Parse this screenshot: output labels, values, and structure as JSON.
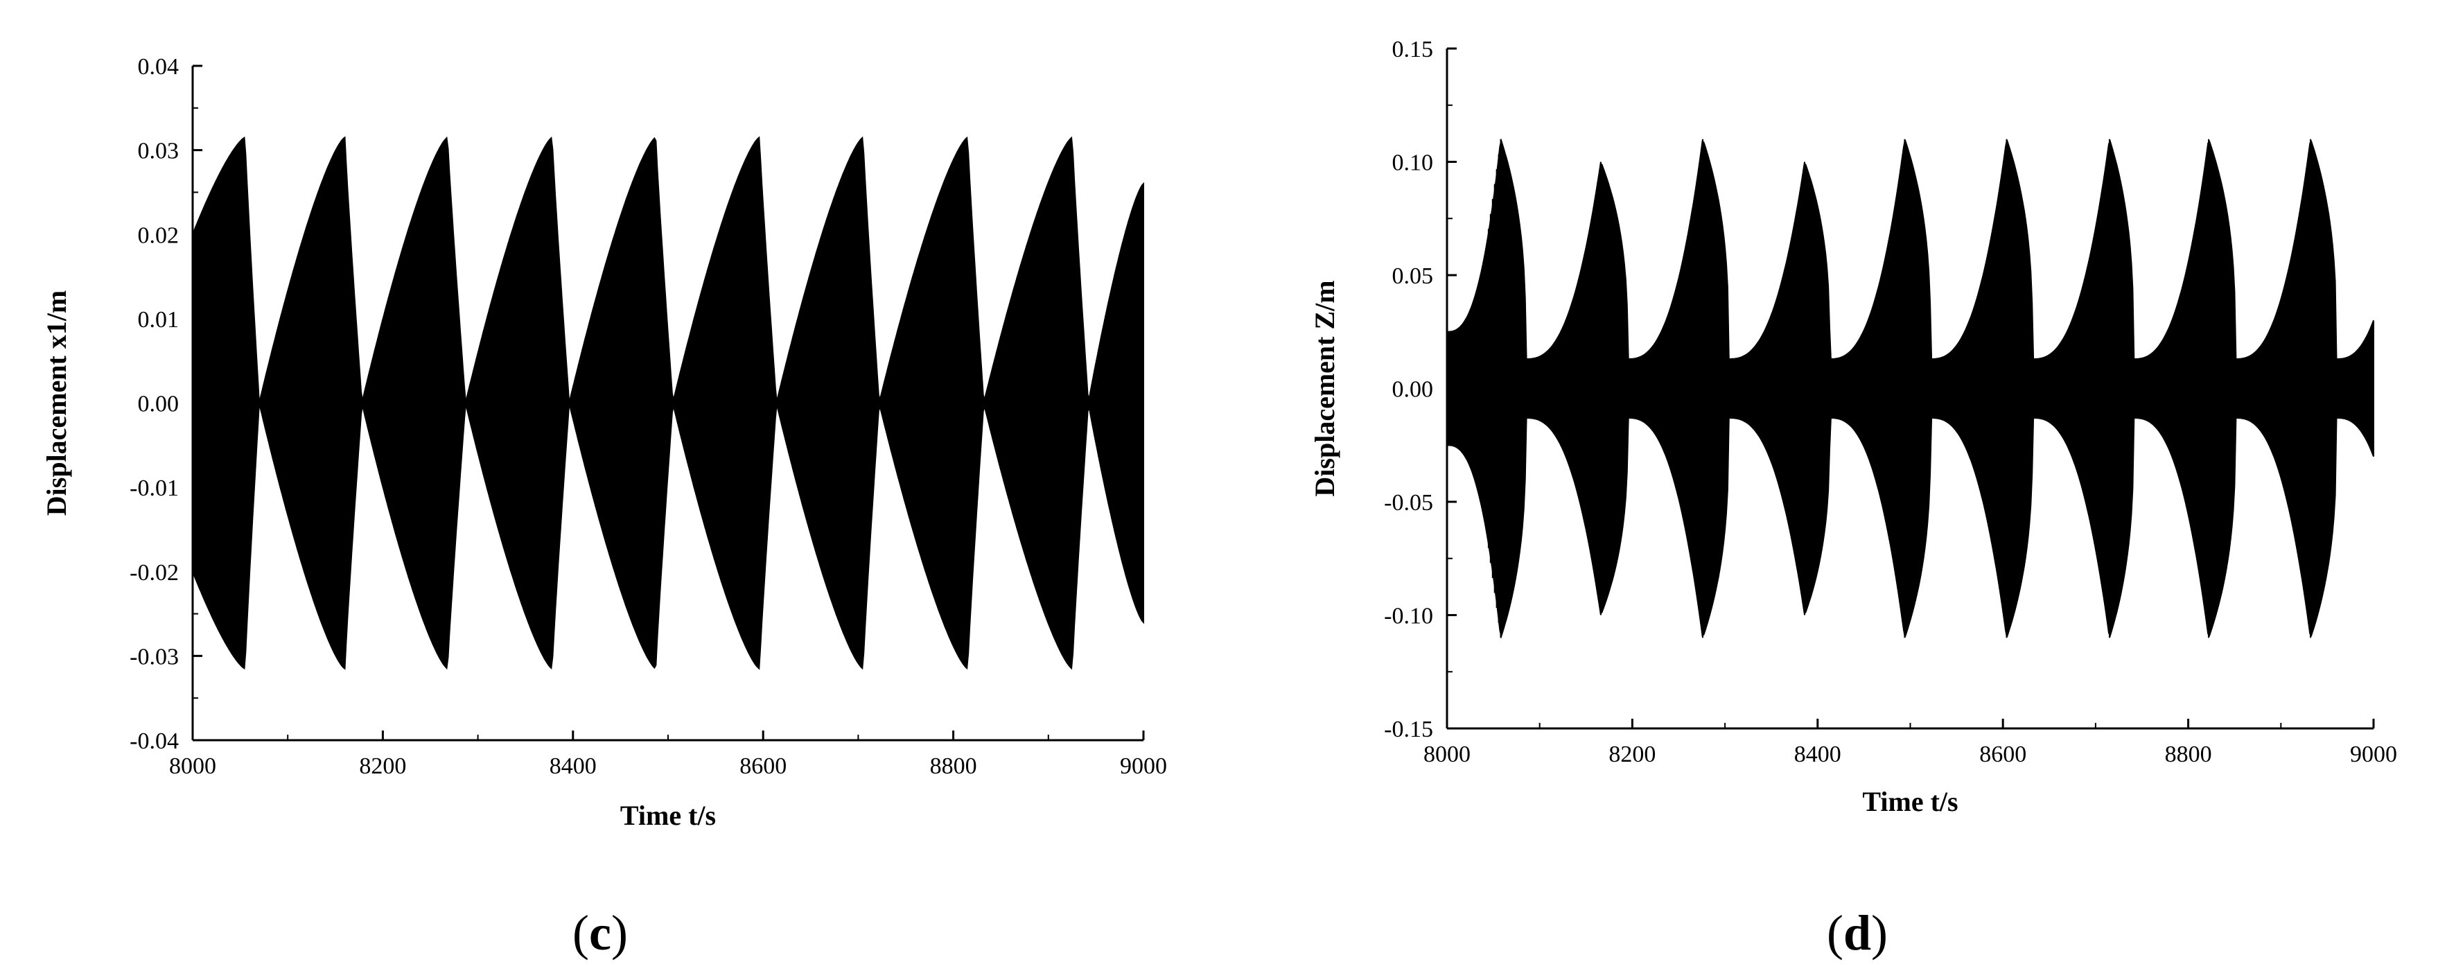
{
  "chart_data": [
    {
      "type": "line",
      "panel": "(c)",
      "panel_letter": "c",
      "xlabel": "Time t/s",
      "ylabel": "Displacement x1/m",
      "xlim": [
        8000,
        9000
      ],
      "ylim": [
        -0.04,
        0.04
      ],
      "xticks": [
        8000,
        8200,
        8400,
        8600,
        8800,
        9000
      ],
      "xtick_labels": [
        "8000",
        "8200",
        "8400",
        "8600",
        "8800",
        "9000"
      ],
      "yticks": [
        -0.04,
        -0.03,
        -0.02,
        -0.01,
        0.0,
        0.01,
        0.02,
        0.03,
        0.04
      ],
      "ytick_labels": [
        "-0.04",
        "-0.03",
        "-0.02",
        "-0.01",
        "0.00",
        "0.01",
        "0.02",
        "0.03",
        "0.04"
      ],
      "grid": false,
      "series": [
        {
          "envelope_peaks": [
            {
              "t": 8055,
              "amp": 0.0315
            },
            {
              "t": 8160,
              "amp": 0.0315
            },
            {
              "t": 8268,
              "amp": 0.0315
            },
            {
              "t": 8378,
              "amp": 0.0315
            },
            {
              "t": 8487,
              "amp": 0.0315
            },
            {
              "t": 8596,
              "amp": 0.0315
            },
            {
              "t": 8705,
              "amp": 0.0315
            },
            {
              "t": 8815,
              "amp": 0.0315
            },
            {
              "t": 8925,
              "amp": 0.0315
            }
          ],
          "envelope_zeros": [
            8070,
            8178,
            8287,
            8396,
            8505,
            8614,
            8722,
            8832,
            8942
          ],
          "start_amp": 0.02,
          "end_amp": 0.026
        }
      ]
    },
    {
      "type": "line",
      "panel": "(d)",
      "panel_letter": "d",
      "xlabel": "Time t/s",
      "ylabel": "Displacement Z/m",
      "xlim": [
        8000,
        9000
      ],
      "ylim": [
        -0.15,
        0.15
      ],
      "xticks": [
        8000,
        8200,
        8400,
        8600,
        8800,
        9000
      ],
      "xtick_labels": [
        "8000",
        "8200",
        "8400",
        "8600",
        "8800",
        "9000"
      ],
      "yticks": [
        -0.15,
        -0.1,
        -0.05,
        0.0,
        0.05,
        0.1,
        0.15
      ],
      "ytick_labels": [
        "-0.15",
        "-0.10",
        "-0.05",
        "0.00",
        "0.05",
        "0.10",
        "0.15"
      ],
      "grid": false,
      "series": [
        {
          "envelope_peaks": [
            {
              "t": 8058,
              "amp": 0.11
            },
            {
              "t": 8166,
              "amp": 0.1
            },
            {
              "t": 8276,
              "amp": 0.11
            },
            {
              "t": 8386,
              "amp": 0.1
            },
            {
              "t": 8494,
              "amp": 0.11
            },
            {
              "t": 8604,
              "amp": 0.11
            },
            {
              "t": 8715,
              "amp": 0.11
            },
            {
              "t": 8822,
              "amp": 0.11
            },
            {
              "t": 8932,
              "amp": 0.11
            }
          ],
          "envelope_zeros": [
            8085,
            8195,
            8304,
            8413,
            8522,
            8632,
            8741,
            8851,
            8960
          ],
          "trough_amp": 0.013,
          "start_amp": 0.025,
          "end_amp": 0.03
        }
      ]
    }
  ]
}
